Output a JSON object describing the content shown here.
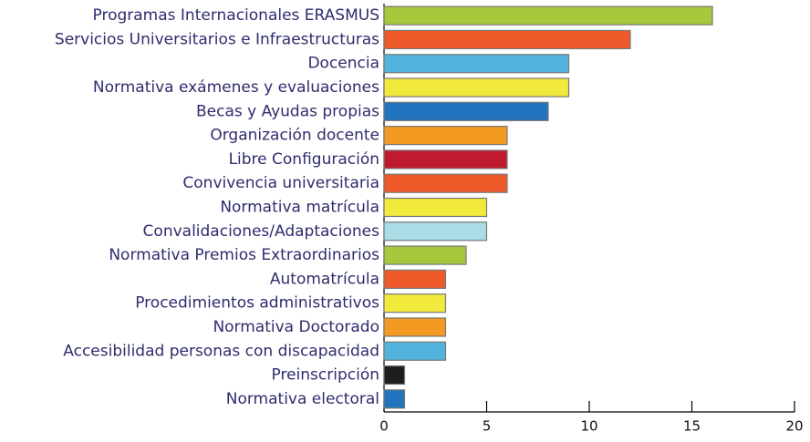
{
  "chart_data": {
    "type": "bar",
    "orientation": "horizontal",
    "categories": [
      "Programas Internacionales ERASMUS",
      "Servicios Universitarios e Infraestructuras",
      "Docencia",
      "Normativa exámenes y evaluaciones",
      "Becas y Ayudas propias",
      "Organización docente",
      "Libre Configuración",
      "Convivencia universitaria",
      "Normativa matrícula",
      "Convalidaciones/Adaptaciones",
      "Normativa Premios Extraordinarios",
      "Automatrícula",
      "Procedimientos administrativos",
      "Normativa Doctorado",
      "Accesibilidad personas con discapacidad",
      "Preinscripción",
      "Normativa electoral"
    ],
    "values": [
      16,
      12,
      9,
      9,
      8,
      6,
      6,
      6,
      5,
      5,
      4,
      3,
      3,
      3,
      3,
      1,
      1
    ],
    "colors": [
      "#a8c83c",
      "#ef5a2a",
      "#52b4dc",
      "#f1ea3c",
      "#2173bd",
      "#f29a22",
      "#c01a30",
      "#ef5a2a",
      "#f1ea3c",
      "#a9dce6",
      "#a8c83c",
      "#ef5a2a",
      "#f1ea3c",
      "#f29a22",
      "#52b4dc",
      "#1e1e1e",
      "#2173bd"
    ],
    "xlim": [
      0,
      20
    ],
    "xticks": [
      0,
      5,
      10,
      15,
      20
    ]
  }
}
